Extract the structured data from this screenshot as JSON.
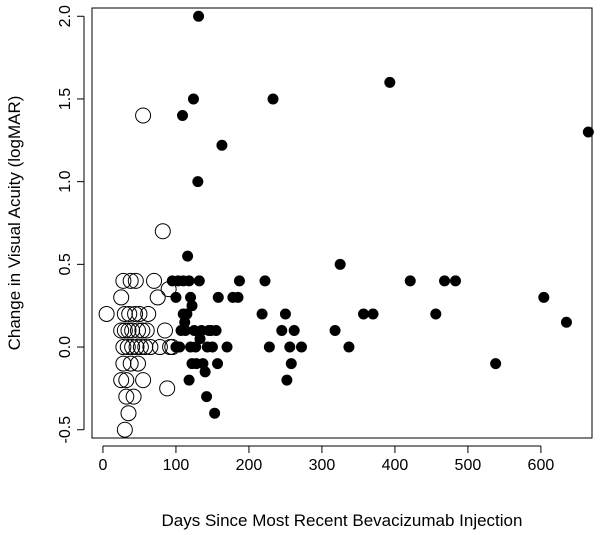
{
  "chart_data": {
    "type": "scatter",
    "title": "",
    "xlabel": "Days Since Most Recent Bevacizumab Injection",
    "ylabel": "Change in Visual Acuity (logMAR)",
    "xlim": [
      -15,
      670
    ],
    "ylim": [
      -0.55,
      2.05
    ],
    "xticks": [
      0,
      100,
      200,
      300,
      400,
      500,
      600
    ],
    "yticks": [
      -0.5,
      0.0,
      0.5,
      1.0,
      1.5,
      2.0
    ],
    "xtick_labels": [
      "0",
      "100",
      "200",
      "300",
      "400",
      "500",
      "600"
    ],
    "ytick_labels": [
      "-0.5",
      "0.0",
      "0.5",
      "1.0",
      "1.5",
      "2.0"
    ],
    "grid": false,
    "series": [
      {
        "marker": "open-circle",
        "color": "#000000",
        "points": [
          [
            5,
            0.2
          ],
          [
            25,
            -0.2
          ],
          [
            25,
            0.1
          ],
          [
            25,
            0.3
          ],
          [
            28,
            0.4
          ],
          [
            28,
            0.0
          ],
          [
            28,
            -0.1
          ],
          [
            30,
            -0.5
          ],
          [
            30,
            0.2
          ],
          [
            30,
            0.1
          ],
          [
            32,
            -0.2
          ],
          [
            32,
            -0.3
          ],
          [
            34,
            0.0
          ],
          [
            35,
            -0.4
          ],
          [
            35,
            0.1
          ],
          [
            36,
            0.2
          ],
          [
            38,
            0.4
          ],
          [
            38,
            -0.1
          ],
          [
            40,
            0.0
          ],
          [
            40,
            0.1
          ],
          [
            42,
            -0.3
          ],
          [
            44,
            0.2
          ],
          [
            45,
            0.4
          ],
          [
            46,
            0.0
          ],
          [
            48,
            0.1
          ],
          [
            48,
            -0.1
          ],
          [
            50,
            0.2
          ],
          [
            52,
            0.0
          ],
          [
            54,
            0.1
          ],
          [
            55,
            1.4
          ],
          [
            55,
            -0.2
          ],
          [
            58,
            0.0
          ],
          [
            60,
            0.1
          ],
          [
            62,
            0.2
          ],
          [
            65,
            0.0
          ],
          [
            70,
            0.4
          ],
          [
            75,
            0.3
          ],
          [
            78,
            0.0
          ],
          [
            82,
            0.7
          ],
          [
            85,
            0.1
          ],
          [
            88,
            -0.25
          ],
          [
            90,
            0.35
          ],
          [
            92,
            0.0
          ],
          [
            95,
            0.0
          ]
        ]
      },
      {
        "marker": "filled-circle",
        "color": "#000000",
        "points": [
          [
            95,
            0.4
          ],
          [
            100,
            0.0
          ],
          [
            100,
            0.3
          ],
          [
            103,
            0.4
          ],
          [
            105,
            0.0
          ],
          [
            107,
            0.1
          ],
          [
            109,
            1.4
          ],
          [
            110,
            0.2
          ],
          [
            110,
            0.4
          ],
          [
            112,
            0.15
          ],
          [
            113,
            0.1
          ],
          [
            115,
            0.2
          ],
          [
            116,
            0.55
          ],
          [
            118,
            -0.2
          ],
          [
            118,
            0.4
          ],
          [
            120,
            0.3
          ],
          [
            120,
            0.0
          ],
          [
            122,
            0.25
          ],
          [
            122,
            -0.1
          ],
          [
            124,
            1.5
          ],
          [
            125,
            0.1
          ],
          [
            127,
            0.0
          ],
          [
            128,
            -0.1
          ],
          [
            130,
            1.0
          ],
          [
            131,
            2.0
          ],
          [
            132,
            0.4
          ],
          [
            133,
            0.05
          ],
          [
            135,
            0.1
          ],
          [
            137,
            -0.1
          ],
          [
            140,
            -0.15
          ],
          [
            142,
            -0.3
          ],
          [
            143,
            0.0
          ],
          [
            145,
            0.1
          ],
          [
            148,
            0.1
          ],
          [
            150,
            0.0
          ],
          [
            153,
            -0.4
          ],
          [
            155,
            0.1
          ],
          [
            157,
            -0.1
          ],
          [
            158,
            0.3
          ],
          [
            163,
            1.22
          ],
          [
            170,
            0.0
          ],
          [
            178,
            0.3
          ],
          [
            185,
            0.3
          ],
          [
            187,
            0.4
          ],
          [
            218,
            0.2
          ],
          [
            222,
            0.4
          ],
          [
            228,
            0.0
          ],
          [
            233,
            1.5
          ],
          [
            245,
            0.1
          ],
          [
            250,
            0.2
          ],
          [
            252,
            -0.2
          ],
          [
            256,
            0.0
          ],
          [
            258,
            -0.1
          ],
          [
            262,
            0.1
          ],
          [
            272,
            0.0
          ],
          [
            318,
            0.1
          ],
          [
            325,
            0.5
          ],
          [
            337,
            0.0
          ],
          [
            357,
            0.2
          ],
          [
            370,
            0.2
          ],
          [
            393,
            1.6
          ],
          [
            421,
            0.4
          ],
          [
            456,
            0.2
          ],
          [
            468,
            0.4
          ],
          [
            483,
            0.4
          ],
          [
            538,
            -0.1
          ],
          [
            604,
            0.3
          ],
          [
            635,
            0.15
          ],
          [
            665,
            1.3
          ]
        ]
      }
    ]
  }
}
